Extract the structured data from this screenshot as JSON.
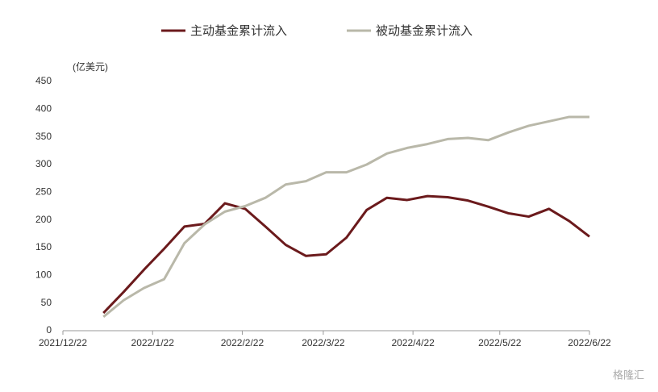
{
  "chart_data": {
    "type": "line",
    "y_unit": "(亿美元)",
    "watermark": "格隆汇",
    "x": [
      "2022-01-05",
      "2022-01-12",
      "2022-01-19",
      "2022-01-26",
      "2022-02-02",
      "2022-02-09",
      "2022-02-16",
      "2022-02-23",
      "2022-03-02",
      "2022-03-09",
      "2022-03-16",
      "2022-03-23",
      "2022-03-30",
      "2022-04-06",
      "2022-04-13",
      "2022-04-20",
      "2022-04-27",
      "2022-05-04",
      "2022-05-11",
      "2022-05-18",
      "2022-05-25",
      "2022-06-01",
      "2022-06-08",
      "2022-06-15",
      "2022-06-22"
    ],
    "series": [
      {
        "name": "主动基金累计流入",
        "color": "#6b1a1c",
        "values": [
          32,
          70,
          110,
          148,
          188,
          193,
          230,
          220,
          188,
          155,
          135,
          138,
          168,
          218,
          240,
          236,
          243,
          241,
          235,
          224,
          212,
          206,
          220,
          198,
          170
        ]
      },
      {
        "name": "被动基金累计流入",
        "color": "#b9b8a9",
        "values": [
          25,
          55,
          77,
          93,
          158,
          192,
          215,
          225,
          240,
          264,
          270,
          286,
          286,
          300,
          320,
          330,
          337,
          346,
          348,
          344,
          358,
          370,
          378,
          386,
          386
        ]
      }
    ],
    "xlim": [
      "2021-12-22",
      "2022-06-22"
    ],
    "xticks": [
      {
        "value": "2021-12-22",
        "label": "2021/12/22"
      },
      {
        "value": "2022-01-22",
        "label": "2022/1/22"
      },
      {
        "value": "2022-02-22",
        "label": "2022/2/22"
      },
      {
        "value": "2022-03-22",
        "label": "2022/3/22"
      },
      {
        "value": "2022-04-22",
        "label": "2022/4/22"
      },
      {
        "value": "2022-05-22",
        "label": "2022/5/22"
      },
      {
        "value": "2022-06-22",
        "label": "2022/6/22"
      }
    ],
    "ylim": [
      0,
      450
    ],
    "yticks": [
      0,
      50,
      100,
      150,
      200,
      250,
      300,
      350,
      400,
      450
    ],
    "legend": "top"
  }
}
